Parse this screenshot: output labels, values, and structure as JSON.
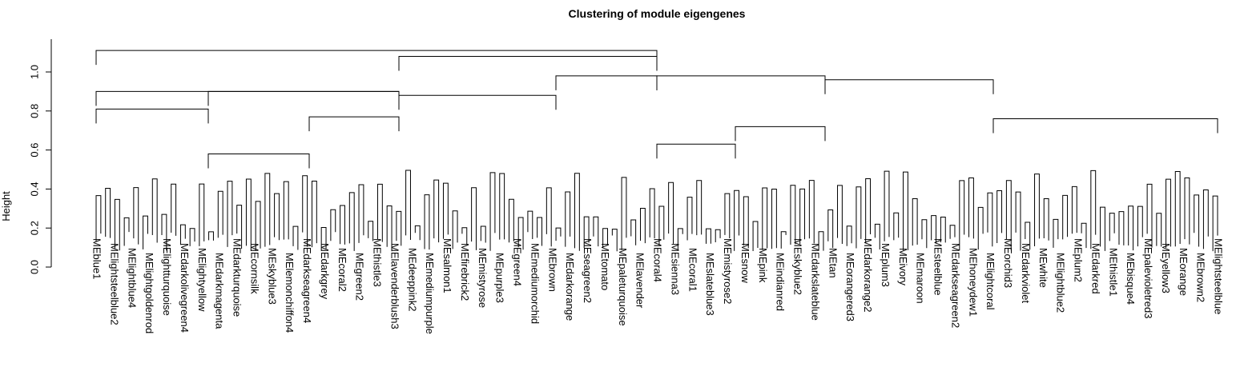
{
  "chart_data": {
    "type": "dendrogram",
    "title": "Clustering of module eigengenes",
    "ylabel": "Height",
    "xlabel": "",
    "ylim": [
      0,
      1.15
    ],
    "y_ticks": [
      "0.0",
      "0.2",
      "0.4",
      "0.6",
      "0.8",
      "1.0"
    ],
    "y_tick_values": [
      0.0,
      0.2,
      0.4,
      0.6,
      0.8,
      1.0
    ],
    "leaf_count": 240,
    "merges": [
      {
        "left": 0.0,
        "right": 0.5,
        "height": 1.11
      },
      {
        "left": 0.0,
        "right": 0.27,
        "height": 0.9
      },
      {
        "left": 0.27,
        "right": 0.5,
        "height": 1.08
      },
      {
        "left": 0.0,
        "right": 0.1,
        "height": 0.81
      },
      {
        "left": 0.1,
        "right": 0.27,
        "height": 0.9
      },
      {
        "left": 0.1,
        "right": 0.19,
        "height": 0.58
      },
      {
        "left": 0.19,
        "right": 0.27,
        "height": 0.77
      },
      {
        "left": 0.27,
        "right": 0.41,
        "height": 0.88
      },
      {
        "left": 0.41,
        "right": 0.5,
        "height": 0.98
      },
      {
        "left": 0.5,
        "right": 0.65,
        "height": 0.98
      },
      {
        "left": 0.65,
        "right": 0.8,
        "height": 0.96
      },
      {
        "left": 0.8,
        "right": 1.0,
        "height": 0.76
      },
      {
        "left": 0.5,
        "right": 0.57,
        "height": 0.63
      },
      {
        "left": 0.57,
        "right": 0.65,
        "height": 0.72
      }
    ],
    "leaf_labels_visible": [
      "MEblue1",
      "MElightsteelblue2",
      "MElightblue4",
      "MElightgoldenrod",
      "MElightturquoise",
      "MEdarkolivegreen4",
      "MElightyellow",
      "MEdarkmagenta",
      "MEdarkturquoise",
      "MEcornsilk",
      "MEskyblue3",
      "MElemonchiffon4",
      "MEdarkseagreen4",
      "MEdarkgrey",
      "MEcoral2",
      "MEgreen2",
      "MEthistle3",
      "MElavenderblush3",
      "MEdeeppink2",
      "MEmediumpurple",
      "MEsalmon1",
      "MEfirebrick2",
      "MEmistyrose",
      "MEpurple3",
      "MEgreen4",
      "MEmediumorchid",
      "MEbrown",
      "MEdarkorange",
      "MEseagreen2",
      "MEtomato",
      "MEpaleturquoise",
      "MElavender",
      "MEcoral4",
      "MEsienna3",
      "MEcoral1",
      "MEslateblue3",
      "MEmistyrose2",
      "MEsnow",
      "MEpink",
      "MEindianred",
      "MEskyblue2",
      "MEdarkslateblue",
      "MEtan",
      "MEorangered3",
      "MEdarkorange2",
      "MEplum3",
      "MEivory",
      "MEmaroon",
      "MEsteelblue",
      "MEdarkseagreen2",
      "MEhoneydew1",
      "MElightcoral",
      "MEorchid3",
      "MEdarkviolet",
      "MEwhite",
      "MElightblue2",
      "MEplum2",
      "MEdarkred",
      "MEthistle1",
      "MEbisque4",
      "MEpalevioletred3",
      "MEyellow3",
      "MEorange",
      "MEbrown2",
      "MElightsteelblue"
    ]
  }
}
